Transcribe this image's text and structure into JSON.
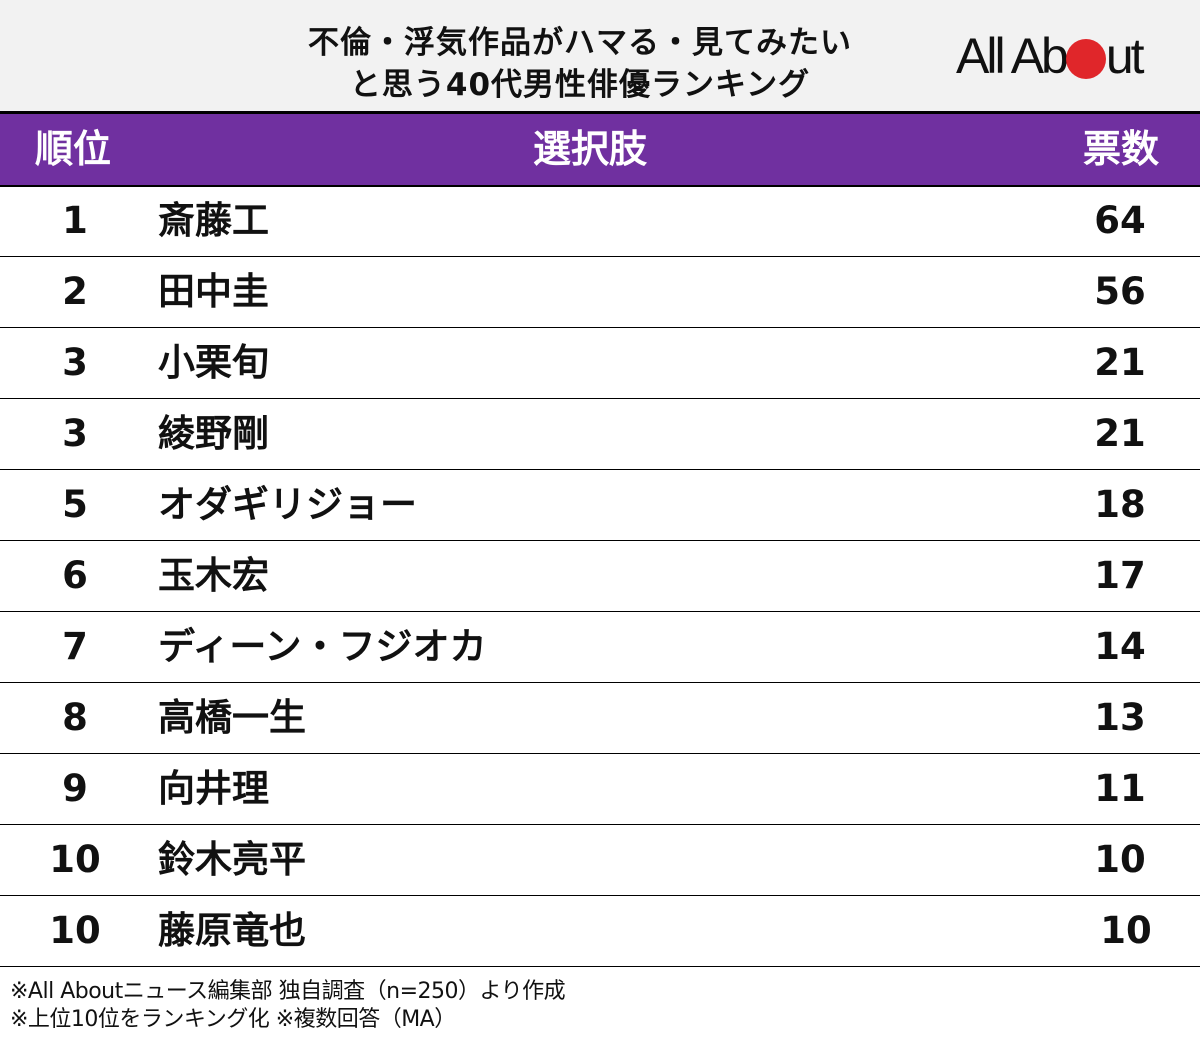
{
  "title": {
    "line1": "不倫・浮気作品がハマる・見てみたい",
    "line2": "と思う40代男性俳優ランキング"
  },
  "logo": {
    "text_before": "All Ab",
    "text_after": "ut",
    "dot_color": "#e0262a"
  },
  "header": {
    "rank": "順位",
    "choice": "選択肢",
    "votes": "票数",
    "background": "#7030a0"
  },
  "rows": [
    {
      "rank": "1",
      "name": "斎藤工",
      "votes": "64"
    },
    {
      "rank": "2",
      "name": "田中圭",
      "votes": "56"
    },
    {
      "rank": "3",
      "name": "小栗旬",
      "votes": "21"
    },
    {
      "rank": "3",
      "name": "綾野剛",
      "votes": "21"
    },
    {
      "rank": "5",
      "name": "オダギリジョー",
      "votes": "18"
    },
    {
      "rank": "6",
      "name": "玉木宏",
      "votes": "17"
    },
    {
      "rank": "7",
      "name": "ディーン・フジオカ",
      "votes": "14"
    },
    {
      "rank": "8",
      "name": "高橋一生",
      "votes": "13"
    },
    {
      "rank": "9",
      "name": "向井理",
      "votes": "11"
    },
    {
      "rank": "10",
      "name": "鈴木亮平",
      "votes": "10"
    },
    {
      "rank": "10",
      "name": "藤原竜也",
      "votes": "10"
    }
  ],
  "footer": {
    "line1": "※All Aboutニュース編集部 独自調査（n=250）より作成",
    "line2": "※上位10位をランキング化 ※複数回答（MA）"
  },
  "chart_data": {
    "type": "table",
    "title": "不倫・浮気作品がハマる・見てみたいと思う40代男性俳優ランキング",
    "columns": [
      "順位",
      "選択肢",
      "票数"
    ],
    "categories": [
      "斎藤工",
      "田中圭",
      "小栗旬",
      "綾野剛",
      "オダギリジョー",
      "玉木宏",
      "ディーン・フジオカ",
      "高橋一生",
      "向井理",
      "鈴木亮平",
      "藤原竜也"
    ],
    "ranks": [
      1,
      2,
      3,
      3,
      5,
      6,
      7,
      8,
      9,
      10,
      10
    ],
    "values": [
      64,
      56,
      21,
      21,
      18,
      17,
      14,
      13,
      11,
      10,
      10
    ],
    "notes": [
      "※All Aboutニュース編集部 独自調査（n=250）より作成",
      "※上位10位をランキング化 ※複数回答（MA）"
    ],
    "sample_size": 250
  }
}
